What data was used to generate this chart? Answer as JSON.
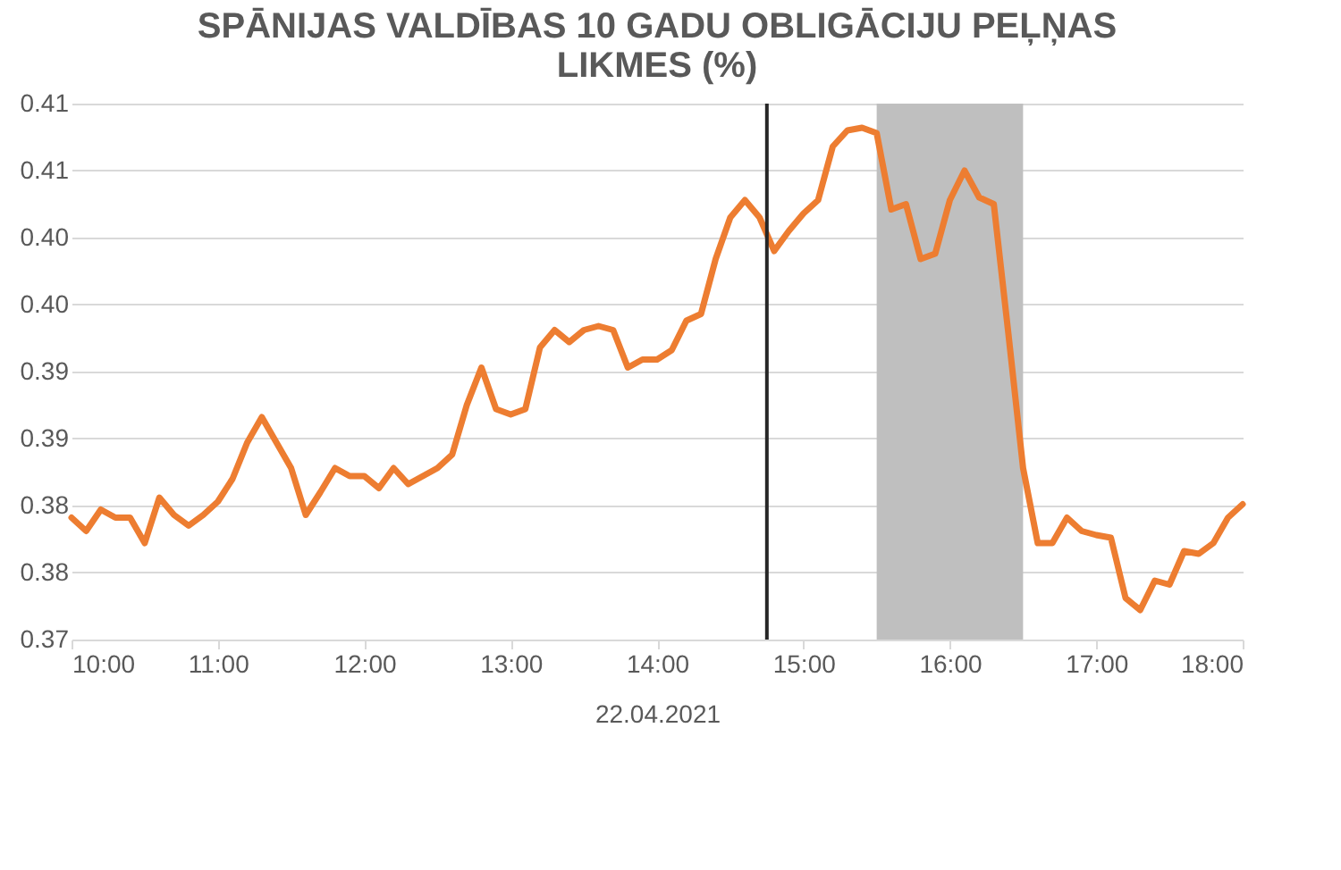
{
  "chart_data": {
    "type": "line",
    "title": "SPĀNIJAS VALDĪBAS 10 GADU OBLIGĀCIJU PEĻŅAS LIKMES (%)",
    "xlabel": "22.04.2021",
    "x": [
      10.0,
      10.1,
      10.2,
      10.3,
      10.4,
      10.5,
      10.6,
      10.7,
      10.8,
      10.9,
      11.0,
      11.1,
      11.2,
      11.3,
      11.4,
      11.5,
      11.6,
      11.7,
      11.8,
      11.9,
      12.0,
      12.1,
      12.2,
      12.3,
      12.4,
      12.5,
      12.6,
      12.7,
      12.8,
      12.9,
      13.0,
      13.1,
      13.2,
      13.3,
      13.4,
      13.5,
      13.6,
      13.7,
      13.8,
      13.9,
      14.0,
      14.1,
      14.2,
      14.3,
      14.4,
      14.5,
      14.6,
      14.7,
      14.8,
      14.9,
      15.0,
      15.1,
      15.2,
      15.3,
      15.4,
      15.5,
      15.6,
      15.7,
      15.8,
      15.9,
      16.0,
      16.1,
      16.2,
      16.3,
      16.4,
      16.5,
      16.6,
      16.7,
      16.8,
      16.9,
      17.0,
      17.1,
      17.2,
      17.3,
      17.4,
      17.5,
      17.6,
      17.7,
      17.8,
      17.9,
      18.0
    ],
    "series": [
      {
        "color": "#ed7d31",
        "values": [
          0.3791,
          0.3781,
          0.3797,
          0.3791,
          0.3791,
          0.3772,
          0.3806,
          0.3793,
          0.3785,
          0.3793,
          0.3803,
          0.382,
          0.3847,
          0.3866,
          0.3847,
          0.3828,
          0.3793,
          0.381,
          0.3828,
          0.3822,
          0.3822,
          0.3813,
          0.3828,
          0.3816,
          0.3822,
          0.3828,
          0.3838,
          0.3875,
          0.3903,
          0.3872,
          0.3868,
          0.3872,
          0.3918,
          0.3931,
          0.3922,
          0.3931,
          0.3934,
          0.3931,
          0.3903,
          0.3909,
          0.3909,
          0.3916,
          0.3938,
          0.3943,
          0.3984,
          0.4015,
          0.4028,
          0.4015,
          0.399,
          0.4005,
          0.4018,
          0.4028,
          0.4068,
          0.408,
          0.4082,
          0.4078,
          0.4021,
          0.4025,
          0.3984,
          0.3988,
          0.4028,
          0.405,
          0.403,
          0.4025,
          0.3928,
          0.3828,
          0.3772,
          0.3772,
          0.3791,
          0.3781,
          0.3778,
          0.3776,
          0.3731,
          0.3722,
          0.3744,
          0.3741,
          0.3766,
          0.3764,
          0.3772,
          0.3791,
          0.3801
        ]
      }
    ],
    "xlim": [
      10,
      18
    ],
    "xticks": [
      {
        "value": 10,
        "label": "10:00"
      },
      {
        "value": 11,
        "label": "11:00"
      },
      {
        "value": 12,
        "label": "12:00"
      },
      {
        "value": 13,
        "label": "13:00"
      },
      {
        "value": 14,
        "label": "14:00"
      },
      {
        "value": 15,
        "label": "15:00"
      },
      {
        "value": 16,
        "label": "16:00"
      },
      {
        "value": 17,
        "label": "17:00"
      },
      {
        "value": 18,
        "label": "18:00"
      }
    ],
    "ylim": [
      0.37,
      0.41
    ],
    "yticks": [
      0.37,
      {
        "value": 0.375,
        "label": "0.38"
      },
      0.38,
      {
        "value": 0.385,
        "label": "0.39"
      },
      0.39,
      {
        "value": 0.395,
        "label": "0.40"
      },
      {
        "value": 0.4,
        "label": "0.40"
      },
      {
        "value": 0.405,
        "label": "0.41"
      },
      0.41
    ],
    "ref_lines": [
      {
        "axis": "x",
        "value": 14.75,
        "color": "#262626"
      }
    ],
    "bands": [
      {
        "axis": "x",
        "from": 15.5,
        "to": 16.5,
        "color": "#bfbfbf"
      }
    ],
    "grid": "y",
    "line_style": "solid",
    "marker": "none"
  }
}
